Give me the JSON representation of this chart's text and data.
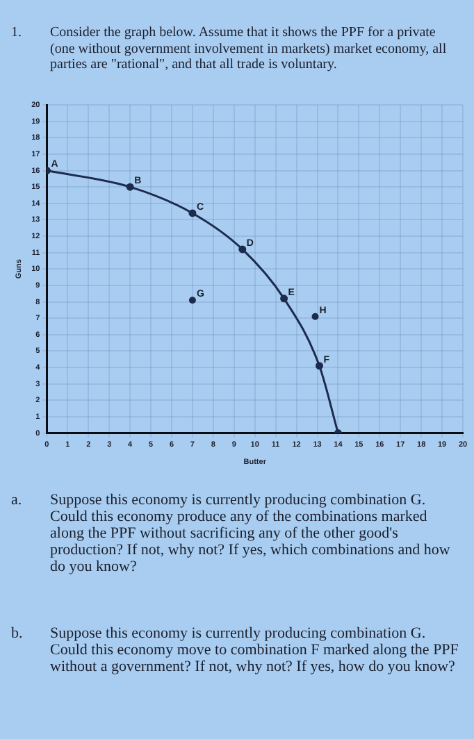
{
  "chart_data": {
    "type": "line",
    "title": "Consider the graph below. Assume that it shows the PPF for a private (one without government involvement in markets) market economy, all parties are \"rational\", and that all trade is voluntary.",
    "xlabel": "Butter",
    "ylabel": "Guns",
    "series": [
      {
        "color": "#1c2b4e",
        "x": [
          0,
          4,
          7,
          9.4,
          11.4,
          13.1,
          14
        ],
        "values": [
          16,
          15,
          13.4,
          11.2,
          8.2,
          4.1,
          0
        ]
      },
      {
        "type": "scatter",
        "color": "#1c2b4e",
        "x": [
          7,
          12.9
        ],
        "values": [
          8.1,
          7.1
        ]
      }
    ],
    "xlim": [
      0,
      20
    ],
    "ylim": [
      0,
      20
    ],
    "xticks": [
      0,
      1,
      2,
      3,
      4,
      5,
      6,
      7,
      8,
      9,
      10,
      11,
      12,
      13,
      14,
      15,
      16,
      17,
      18,
      19,
      20
    ],
    "yticks": [
      0,
      1,
      2,
      3,
      4,
      5,
      6,
      7,
      8,
      9,
      10,
      11,
      12,
      13,
      14,
      15,
      16,
      17,
      18,
      19,
      20
    ],
    "grid": true,
    "marker": "circle",
    "legend": false,
    "annotations": [
      "1.",
      {
        "text": "A",
        "x": 0,
        "y": 16
      },
      {
        "text": "B",
        "x": 4,
        "y": 15
      },
      {
        "text": "C",
        "x": 7,
        "y": 13.4
      },
      {
        "text": "D",
        "x": 9.4,
        "y": 11.2
      },
      {
        "text": "E",
        "x": 11.4,
        "y": 8.2
      },
      {
        "text": "F",
        "x": 13.1,
        "y": 4.1
      },
      {
        "text": "G",
        "x": 7,
        "y": 8.1
      },
      {
        "text": "H",
        "x": 12.9,
        "y": 7.1
      },
      "a.",
      "Suppose this economy is currently producing combination G. Could this economy produce any of the combinations marked along the PPF without sacrificing any of the other good's production? If not, why not? If yes, which combinations and how do you know?",
      "b.",
      "Suppose this economy is currently producing combination G. Could this economy move to combination F marked along the PPF without a government? If not, why not? If yes, how do you know?"
    ]
  }
}
